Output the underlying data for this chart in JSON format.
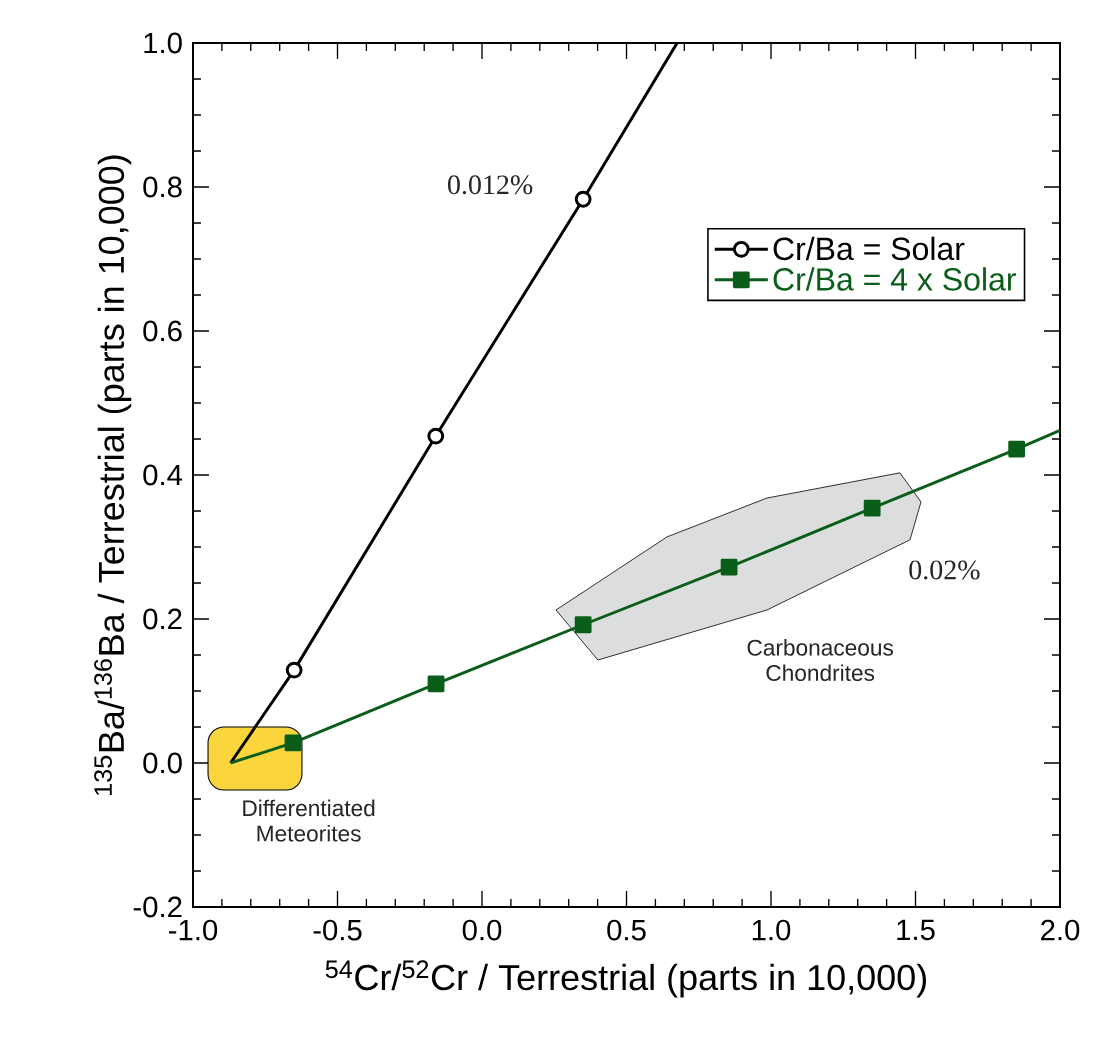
{
  "chart_data": {
    "type": "line",
    "xlabel": "$^{54}$Cr/$^{52}$Cr / Terrestrial (parts in 10,000)",
    "ylabel": "$^{135}$Ba/$^{136}$Ba / Terrestrial (parts in 10,000)",
    "xlim": [
      -1.0,
      2.0
    ],
    "ylim": [
      -0.2,
      1.0
    ],
    "xticks": [
      {
        "value": -1.0,
        "label": "-1.0"
      },
      {
        "value": -0.5,
        "label": "-0.5"
      },
      {
        "value": 0,
        "label": "0.0"
      },
      {
        "value": 0.5,
        "label": "0.5"
      },
      {
        "value": 1.0,
        "label": "1.0"
      },
      {
        "value": 1.5,
        "label": "1.5"
      },
      {
        "value": 2.0,
        "label": "2.0"
      }
    ],
    "yticks": [
      {
        "value": -0.2,
        "label": "-0.2"
      },
      {
        "value": 0,
        "label": "0.0"
      },
      {
        "value": 0.2,
        "label": "0.2"
      },
      {
        "value": 0.4,
        "label": "0.4"
      },
      {
        "value": 0.6,
        "label": "0.6"
      },
      {
        "value": 0.8,
        "label": "0.8"
      },
      {
        "value": 1.0,
        "label": "1.0"
      }
    ],
    "series": [
      {
        "name": "Cr/Ba = Solar",
        "color": "#000000",
        "marker": "circle",
        "x": [
          -0.65,
          -0.16,
          0.35
        ],
        "values": [
          0.129,
          0.454,
          0.783
        ]
      },
      {
        "name": "Cr/Ba = 4 x Solar",
        "color": "#0b5e1a",
        "marker": "square",
        "x": [
          -0.654,
          -0.159,
          0.35,
          0.855,
          1.35,
          1.85
        ],
        "values": [
          0.028,
          0.11,
          0.192,
          0.272,
          0.354,
          0.436
        ]
      },
      {
        "color": "#000000",
        "marker": "none",
        "x": [
          -0.87,
          -0.65
        ],
        "values": [
          0,
          0.129
        ]
      },
      {
        "color": "#000000",
        "marker": "none",
        "x": [
          0.35,
          0.675
        ],
        "values": [
          0.783,
          1.0
        ]
      },
      {
        "color": "#0b5e1a",
        "marker": "none",
        "x": [
          -0.87,
          -0.654
        ],
        "values": [
          0,
          0.028
        ]
      },
      {
        "color": "#0b5e1a",
        "marker": "none",
        "x": [
          1.85,
          2.0
        ],
        "values": [
          0.436,
          0.462
        ]
      }
    ],
    "annotations": [
      "0.012%",
      "0.02%",
      "Differentiated Meteorites",
      "Carbonaceous Chondrites"
    ],
    "legend": "top right",
    "grid": false,
    "line_style": "solid"
  }
}
